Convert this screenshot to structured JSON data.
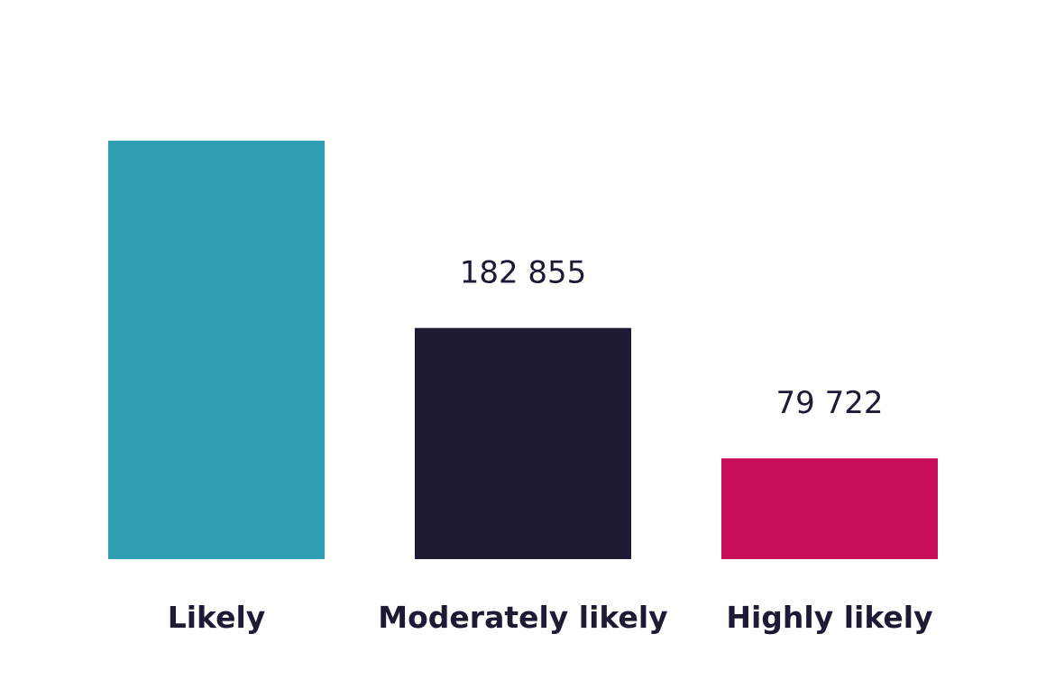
{
  "chart_data": {
    "type": "bar",
    "categories": [
      "Likely",
      "Moderately likely",
      "Highly likely"
    ],
    "values": [
      331000,
      182855,
      79722
    ],
    "value_labels": [
      "",
      "182 855",
      "79 722"
    ],
    "colors": [
      "#2e9db4",
      "#1e1a33",
      "#c8105a"
    ],
    "title": "",
    "xlabel": "",
    "ylabel": "",
    "ylim": [
      0,
      331000
    ],
    "grid": false,
    "legend": "none"
  }
}
